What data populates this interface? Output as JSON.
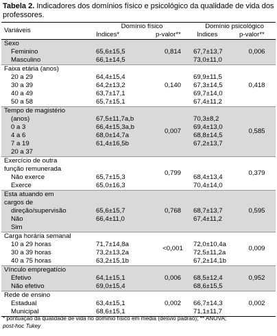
{
  "title": {
    "label": "Tabela 2.",
    "text": "Indicadores dos domínios físico e psicológico da qualidade de vida dos professores."
  },
  "table": {
    "header": {
      "variables": "Variáveis",
      "domain_physical": "Domínio físico",
      "domain_psych": "Domínio psicológico",
      "sub": [
        "Indices*",
        "p-valor**",
        "Indices",
        "p-valor**"
      ]
    },
    "groups": [
      {
        "label_lines": [
          "Sexo"
        ],
        "p_fisico": "0,814",
        "p_psico": "0,006",
        "rows": [
          {
            "label": "Feminino",
            "fisico": "65,6±15,5",
            "psico": "67,7±13,7"
          },
          {
            "label": "Masculino",
            "fisico": "66,1±14,5",
            "psico": "73,0±11,0"
          }
        ]
      },
      {
        "label_lines": [
          "Faixa etária (anos)"
        ],
        "p_fisico": "0,140",
        "p_psico": "0,418",
        "rows": [
          {
            "label": "20 a 29",
            "fisico": "64,4±15,4",
            "psico": "69,9±11,5"
          },
          {
            "label": "30 a 39",
            "fisico": "64,2±13,2",
            "psico": "67,3±14,5"
          },
          {
            "label": "40 a 49",
            "fisico": "63,7±17,1",
            "psico": "69,7±14,0"
          },
          {
            "label": "50 a 58",
            "fisico": "65,7±15,1",
            "psico": "67,4±11,2"
          }
        ]
      },
      {
        "label_lines": [
          "Tempo de magistério"
        ],
        "p_fisico": "0,007",
        "p_psico": "0,585",
        "rows": [
          {
            "label": "(anos)",
            "fisico": "67,5±11,7a,b",
            "psico": "70,3±8,2"
          },
          {
            "label": "0 a 3",
            "fisico": "66,4±15,3a,b",
            "psico": "69,4±13,0"
          },
          {
            "label": "4 a 6",
            "fisico": "68,0±14,7a",
            "psico": "68,8±14,5"
          },
          {
            "label": "7 a 19",
            "fisico": "61,4±16,5b",
            "psico": "67,2±13,7"
          },
          {
            "label": "20 a 37"
          }
        ]
      },
      {
        "label_lines": [
          "Exercício de outra",
          "função remunerada"
        ],
        "p_fisico": "0,799",
        "p_psico": "0,379",
        "rows": [
          {
            "label": "Não exerce",
            "fisico": "65,7±15,3",
            "psico": "68,4±13,4"
          },
          {
            "label": "Exerce",
            "fisico": "65,0±16,3",
            "psico": "70,4±14,0"
          }
        ]
      },
      {
        "label_lines": [
          "Esta atuando em",
          "cargos de"
        ],
        "p_fisico": "0,768",
        "p_psico": "0,595",
        "rows": [
          {
            "label": "direção/supervisão",
            "fisico": "65,6±15,7",
            "psico": "68,7±13,7"
          },
          {
            "label": "Não",
            "fisico": "66,4±11,0",
            "psico": "67,4±11,2"
          },
          {
            "label": "Sim"
          }
        ]
      },
      {
        "label_lines": [
          "Carga horária semanal"
        ],
        "p_fisico": "<0,001",
        "p_psico": "0,009",
        "rows": [
          {
            "label": "10 a 29 horas",
            "fisico": "71,7±14,8a",
            "psico": "72,0±10,4a"
          },
          {
            "label": "30 a 39 horas",
            "fisico": "73,2±13,2a",
            "psico": "72,5±11,2a"
          },
          {
            "label": "40 a 75 horas",
            "fisico": "63,2±15,1b",
            "psico": "67,2±14,1b"
          }
        ]
      },
      {
        "label_lines": [
          "Vínculo empregatício"
        ],
        "p_fisico": "0,006",
        "p_psico": "0,952",
        "rows": [
          {
            "label": "Efetivo",
            "fisico": "64,1±15,1",
            "psico": "68,5±12,4"
          },
          {
            "label": "Não efetivo",
            "fisico": "69,0±15,4",
            "psico": "68,6±15,5"
          }
        ]
      },
      {
        "label_lines": [
          "Rede de ensino"
        ],
        "p_fisico": "0,002",
        "p_psico": "0,002",
        "rows": [
          {
            "label": "Estadual",
            "fisico": "63,4±15,1",
            "psico": "66,7±14,3"
          },
          {
            "label": "Municipal",
            "fisico": "68,6±15,1",
            "psico": "71,1±11,7"
          }
        ]
      }
    ]
  },
  "footnote": {
    "text": "* pontuação da qualidade de vida no domínio físico em média (desvio padrão); ** ANOVA;",
    "italic": "post-hoc Tukey"
  }
}
